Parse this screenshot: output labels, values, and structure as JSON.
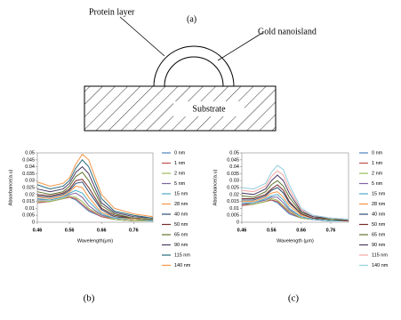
{
  "diagram": {
    "label": "(a)",
    "protein_layer": "Protein layer",
    "gold_nanoisland": "Gold nanoisland",
    "substrate": "Substrate"
  },
  "chart_data": [
    {
      "type": "line",
      "caption": "(b)",
      "x_label": "Wavelength(μm)",
      "y_label": "Absorbance(a.u)",
      "x": [
        0.46,
        0.5,
        0.54,
        0.56,
        0.58,
        0.6,
        0.62,
        0.66,
        0.7,
        0.76,
        0.82
      ],
      "xlim": [
        0.46,
        0.82
      ],
      "xticks": [
        0.46,
        0.56,
        0.66,
        0.76
      ],
      "ylim": [
        0,
        0.05
      ],
      "yticks": [
        0,
        0.005,
        0.01,
        0.015,
        0.02,
        0.025,
        0.03,
        0.035,
        0.04,
        0.045,
        0.05
      ],
      "series": [
        {
          "name": "0 nm",
          "color": "#4f81bd",
          "values": [
            0.014,
            0.015,
            0.017,
            0.018,
            0.016,
            0.012,
            0.008,
            0.004,
            0.002,
            0.001,
            0.001
          ]
        },
        {
          "name": "1 nm",
          "color": "#c0504d",
          "values": [
            0.014,
            0.015,
            0.017,
            0.018,
            0.017,
            0.013,
            0.009,
            0.004,
            0.002,
            0.001,
            0.001
          ]
        },
        {
          "name": "2 nm",
          "color": "#9bbb59",
          "values": [
            0.015,
            0.015,
            0.017,
            0.019,
            0.018,
            0.015,
            0.01,
            0.005,
            0.002,
            0.001,
            0.001
          ]
        },
        {
          "name": "5 nm",
          "color": "#8064a2",
          "values": [
            0.016,
            0.016,
            0.018,
            0.02,
            0.021,
            0.018,
            0.012,
            0.005,
            0.003,
            0.002,
            0.001
          ]
        },
        {
          "name": "15 nm",
          "color": "#4bacc6",
          "values": [
            0.017,
            0.016,
            0.018,
            0.021,
            0.023,
            0.021,
            0.015,
            0.006,
            0.003,
            0.002,
            0.001
          ]
        },
        {
          "name": "28 nm",
          "color": "#f79646",
          "values": [
            0.018,
            0.017,
            0.019,
            0.022,
            0.026,
            0.025,
            0.018,
            0.007,
            0.004,
            0.002,
            0.002
          ]
        },
        {
          "name": "40 nm",
          "color": "#2c4d75",
          "values": [
            0.019,
            0.018,
            0.02,
            0.023,
            0.028,
            0.029,
            0.022,
            0.009,
            0.004,
            0.003,
            0.002
          ]
        },
        {
          "name": "50 nm",
          "color": "#772c2a",
          "values": [
            0.02,
            0.019,
            0.021,
            0.024,
            0.03,
            0.031,
            0.025,
            0.01,
            0.005,
            0.003,
            0.002
          ]
        },
        {
          "name": "65 nm",
          "color": "#5f7530",
          "values": [
            0.022,
            0.02,
            0.022,
            0.026,
            0.033,
            0.036,
            0.03,
            0.012,
            0.006,
            0.003,
            0.002
          ]
        },
        {
          "name": "90 nm",
          "color": "#4d3b62",
          "values": [
            0.024,
            0.022,
            0.024,
            0.028,
            0.036,
            0.04,
            0.035,
            0.014,
            0.007,
            0.004,
            0.003
          ]
        },
        {
          "name": "115 nm",
          "color": "#276a7c",
          "values": [
            0.027,
            0.024,
            0.026,
            0.03,
            0.039,
            0.045,
            0.04,
            0.017,
            0.008,
            0.005,
            0.003
          ]
        },
        {
          "name": "140 nm",
          "color": "#f79646",
          "values": [
            0.029,
            0.026,
            0.028,
            0.032,
            0.042,
            0.049,
            0.045,
            0.02,
            0.01,
            0.006,
            0.004
          ]
        }
      ]
    },
    {
      "type": "line",
      "caption": "(c)",
      "x_label": "Wavelength (μm)",
      "y_label": "Absorbance(a.u)",
      "x": [
        0.46,
        0.5,
        0.54,
        0.56,
        0.58,
        0.6,
        0.62,
        0.66,
        0.7,
        0.76,
        0.82
      ],
      "xlim": [
        0.46,
        0.82
      ],
      "xticks": [
        0.46,
        0.56,
        0.66,
        0.76
      ],
      "ylim": [
        0,
        0.05
      ],
      "yticks": [
        0,
        0.005,
        0.01,
        0.015,
        0.02,
        0.025,
        0.03,
        0.035,
        0.04,
        0.045,
        0.05
      ],
      "series": [
        {
          "name": "0 nm",
          "color": "#4f81bd",
          "values": [
            0.012,
            0.013,
            0.015,
            0.016,
            0.014,
            0.01,
            0.006,
            0.003,
            0.002,
            0.001,
            0.001
          ]
        },
        {
          "name": "1 nm",
          "color": "#c0504d",
          "values": [
            0.012,
            0.013,
            0.015,
            0.016,
            0.015,
            0.011,
            0.007,
            0.003,
            0.002,
            0.001,
            0.001
          ]
        },
        {
          "name": "2 nm",
          "color": "#9bbb59",
          "values": [
            0.013,
            0.013,
            0.015,
            0.017,
            0.016,
            0.012,
            0.008,
            0.003,
            0.002,
            0.001,
            0.001
          ]
        },
        {
          "name": "5 nm",
          "color": "#8064a2",
          "values": [
            0.013,
            0.014,
            0.016,
            0.018,
            0.018,
            0.014,
            0.009,
            0.004,
            0.002,
            0.001,
            0.001
          ]
        },
        {
          "name": "15 nm",
          "color": "#4bacc6",
          "values": [
            0.014,
            0.014,
            0.017,
            0.019,
            0.02,
            0.016,
            0.01,
            0.004,
            0.002,
            0.001,
            0.001
          ]
        },
        {
          "name": "28 nm",
          "color": "#f79646",
          "values": [
            0.015,
            0.015,
            0.018,
            0.021,
            0.022,
            0.018,
            0.012,
            0.005,
            0.003,
            0.002,
            0.001
          ]
        },
        {
          "name": "40 nm",
          "color": "#2c4d75",
          "values": [
            0.016,
            0.016,
            0.019,
            0.023,
            0.025,
            0.021,
            0.014,
            0.006,
            0.003,
            0.002,
            0.001
          ]
        },
        {
          "name": "50 nm",
          "color": "#772c2a",
          "values": [
            0.017,
            0.017,
            0.02,
            0.024,
            0.027,
            0.023,
            0.015,
            0.006,
            0.003,
            0.002,
            0.001
          ]
        },
        {
          "name": "65 nm",
          "color": "#5f7530",
          "values": [
            0.019,
            0.018,
            0.022,
            0.027,
            0.03,
            0.026,
            0.018,
            0.007,
            0.004,
            0.002,
            0.002
          ]
        },
        {
          "name": "90 nm",
          "color": "#4d3b62",
          "values": [
            0.021,
            0.02,
            0.024,
            0.03,
            0.034,
            0.03,
            0.021,
            0.008,
            0.004,
            0.003,
            0.002
          ]
        },
        {
          "name": "115 nm",
          "color": "#f4a6a4",
          "values": [
            0.023,
            0.022,
            0.026,
            0.033,
            0.037,
            0.034,
            0.024,
            0.009,
            0.005,
            0.003,
            0.002
          ]
        },
        {
          "name": "140 nm",
          "color": "#93cddd",
          "values": [
            0.025,
            0.024,
            0.028,
            0.036,
            0.041,
            0.038,
            0.027,
            0.01,
            0.005,
            0.003,
            0.002
          ]
        }
      ]
    }
  ]
}
